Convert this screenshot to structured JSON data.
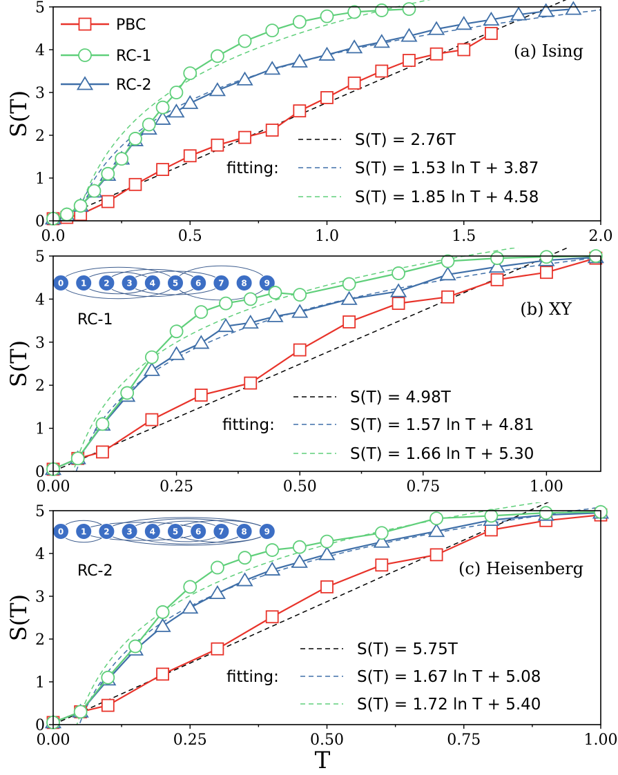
{
  "colors": {
    "PBC": "#e8332a",
    "RC-1": "#5fcf7a",
    "RC-2": "#3f6fa8",
    "linear_fit": "#000000",
    "node": "#3c6ec4",
    "arc": "#3a5a8c"
  },
  "legend": [
    "PBC",
    "RC-1",
    "RC-2"
  ],
  "fitting_word": "fitting:",
  "x_axis_label": "T",
  "y_axis_label": "S(T)",
  "chart_data": [
    {
      "type": "line",
      "panel_label": "(a) Ising",
      "xlim": [
        0,
        2.0
      ],
      "ylim": [
        0,
        5
      ],
      "xticks": [
        0.0,
        0.5,
        1.0,
        1.5,
        2.0
      ],
      "xtick_labels": [
        "0.0",
        "0.5",
        "1.0",
        "1.5",
        "2.0"
      ],
      "yticks": [
        0,
        1,
        2,
        3,
        4,
        5
      ],
      "ytick_labels": [
        "0",
        "1",
        "2",
        "3",
        "4",
        "5"
      ],
      "series": [
        {
          "name": "PBC",
          "marker": "square",
          "x": [
            0.0,
            0.05,
            0.1,
            0.2,
            0.3,
            0.4,
            0.5,
            0.6,
            0.7,
            0.8,
            0.9,
            1.0,
            1.1,
            1.2,
            1.3,
            1.4,
            1.5,
            1.6
          ],
          "y": [
            0.05,
            0.08,
            0.15,
            0.45,
            0.85,
            1.2,
            1.52,
            1.77,
            1.95,
            2.12,
            2.57,
            2.88,
            3.22,
            3.5,
            3.75,
            3.9,
            4.0,
            4.38
          ]
        },
        {
          "name": "RC-1",
          "marker": "circle",
          "x": [
            0.0,
            0.05,
            0.1,
            0.15,
            0.2,
            0.25,
            0.3,
            0.35,
            0.4,
            0.45,
            0.5,
            0.6,
            0.7,
            0.8,
            0.9,
            1.0,
            1.1,
            1.2,
            1.3
          ],
          "y": [
            0.05,
            0.15,
            0.35,
            0.7,
            1.1,
            1.45,
            1.92,
            2.25,
            2.65,
            3.0,
            3.45,
            3.85,
            4.2,
            4.45,
            4.65,
            4.78,
            4.88,
            4.92,
            4.95
          ]
        },
        {
          "name": "RC-2",
          "marker": "triangle",
          "x": [
            0.0,
            0.05,
            0.1,
            0.15,
            0.2,
            0.25,
            0.3,
            0.35,
            0.4,
            0.45,
            0.5,
            0.6,
            0.7,
            0.8,
            0.9,
            1.0,
            1.1,
            1.2,
            1.3,
            1.4,
            1.5,
            1.6,
            1.7,
            1.8,
            1.9
          ],
          "y": [
            0.05,
            0.13,
            0.35,
            0.68,
            1.07,
            1.45,
            1.88,
            2.15,
            2.38,
            2.55,
            2.75,
            3.05,
            3.3,
            3.55,
            3.72,
            3.88,
            4.05,
            4.18,
            4.32,
            4.48,
            4.6,
            4.7,
            4.82,
            4.9,
            4.95
          ]
        }
      ],
      "fits": [
        {
          "label": "S(T) = 2.76T",
          "kind": "linear",
          "a": 2.76,
          "color_key": "linear_fit"
        },
        {
          "label": "S(T) = 1.53 ln T + 3.87",
          "kind": "log",
          "a": 1.53,
          "b": 3.87,
          "color_key": "RC-2"
        },
        {
          "label": "S(T) = 1.85 ln T + 4.58",
          "kind": "log",
          "a": 1.85,
          "b": 4.58,
          "color_key": "RC-1"
        }
      ],
      "legend_position": "top-left"
    },
    {
      "type": "line",
      "panel_label": "(b) XY",
      "inset_label": "RC-1",
      "xlim": [
        0,
        1.11
      ],
      "ylim": [
        0,
        5
      ],
      "xticks": [
        0.0,
        0.25,
        0.5,
        0.75,
        1.0
      ],
      "xtick_labels": [
        "0.00",
        "0.25",
        "0.50",
        "0.75",
        "1.00"
      ],
      "yticks": [
        0,
        1,
        2,
        3,
        4,
        5
      ],
      "ytick_labels": [
        "0",
        "1",
        "2",
        "3",
        "4",
        "5"
      ],
      "series": [
        {
          "name": "PBC",
          "marker": "square",
          "x": [
            0.0,
            0.05,
            0.1,
            0.2,
            0.3,
            0.4,
            0.5,
            0.6,
            0.7,
            0.8,
            0.9,
            1.0,
            1.1
          ],
          "y": [
            0.05,
            0.3,
            0.45,
            1.2,
            1.77,
            2.05,
            2.82,
            3.47,
            3.9,
            4.05,
            4.45,
            4.62,
            4.95
          ]
        },
        {
          "name": "RC-1",
          "marker": "circle",
          "x": [
            0.0,
            0.05,
            0.1,
            0.15,
            0.2,
            0.25,
            0.3,
            0.35,
            0.4,
            0.45,
            0.5,
            0.6,
            0.7,
            0.8,
            0.9,
            1.0,
            1.1
          ],
          "y": [
            0.05,
            0.3,
            1.1,
            1.82,
            2.65,
            3.25,
            3.7,
            3.9,
            4.0,
            4.15,
            4.1,
            4.35,
            4.6,
            4.88,
            4.95,
            4.98,
            5.0
          ]
        },
        {
          "name": "RC-2",
          "marker": "triangle",
          "x": [
            0.0,
            0.05,
            0.1,
            0.15,
            0.2,
            0.25,
            0.3,
            0.35,
            0.4,
            0.45,
            0.5,
            0.6,
            0.7,
            0.8,
            0.9,
            1.0,
            1.1
          ],
          "y": [
            0.05,
            0.3,
            1.08,
            1.75,
            2.35,
            2.72,
            2.98,
            3.37,
            3.45,
            3.6,
            3.7,
            4.0,
            4.18,
            4.57,
            4.75,
            4.9,
            4.97
          ]
        }
      ],
      "fits": [
        {
          "label": "S(T) = 4.98T",
          "kind": "linear",
          "a": 4.98,
          "color_key": "linear_fit"
        },
        {
          "label": "S(T) = 1.57 ln T + 4.81",
          "kind": "log",
          "a": 1.57,
          "b": 4.81,
          "color_key": "RC-2"
        },
        {
          "label": "S(T) = 1.66 ln T + 5.30",
          "kind": "log",
          "a": 1.66,
          "b": 5.3,
          "color_key": "RC-1"
        }
      ],
      "nodes": [
        "0",
        "1",
        "2",
        "3",
        "4",
        "5",
        "6",
        "7",
        "8",
        "9"
      ]
    },
    {
      "type": "line",
      "panel_label": "(c) Heisenberg",
      "inset_label": "RC-2",
      "xlim": [
        0,
        1.0
      ],
      "ylim": [
        0,
        5
      ],
      "xticks": [
        0.0,
        0.25,
        0.5,
        0.75,
        1.0
      ],
      "xtick_labels": [
        "0.00",
        "0.25",
        "0.50",
        "0.75",
        "1.00"
      ],
      "yticks": [
        0,
        1,
        2,
        3,
        4,
        5
      ],
      "ytick_labels": [
        "0",
        "1",
        "2",
        "3",
        "4",
        "5"
      ],
      "series": [
        {
          "name": "PBC",
          "marker": "square",
          "x": [
            0.0,
            0.05,
            0.1,
            0.2,
            0.3,
            0.4,
            0.5,
            0.6,
            0.7,
            0.8,
            0.9,
            1.0
          ],
          "y": [
            0.05,
            0.3,
            0.45,
            1.18,
            1.77,
            2.52,
            3.22,
            3.73,
            3.97,
            4.55,
            4.77,
            4.9
          ]
        },
        {
          "name": "RC-1",
          "marker": "circle",
          "x": [
            0.0,
            0.05,
            0.1,
            0.15,
            0.2,
            0.25,
            0.3,
            0.35,
            0.4,
            0.45,
            0.5,
            0.6,
            0.7,
            0.8,
            0.9,
            1.0
          ],
          "y": [
            0.05,
            0.3,
            1.1,
            1.83,
            2.63,
            3.22,
            3.67,
            3.9,
            4.08,
            4.15,
            4.28,
            4.48,
            4.82,
            4.88,
            4.95,
            4.97
          ]
        },
        {
          "name": "RC-2",
          "marker": "triangle",
          "x": [
            0.0,
            0.05,
            0.1,
            0.15,
            0.2,
            0.25,
            0.3,
            0.35,
            0.4,
            0.45,
            0.5,
            0.6,
            0.7,
            0.8,
            0.9,
            1.0
          ],
          "y": [
            0.05,
            0.3,
            1.05,
            1.75,
            2.3,
            2.73,
            3.07,
            3.37,
            3.62,
            3.8,
            3.98,
            4.27,
            4.52,
            4.78,
            4.9,
            4.95
          ]
        }
      ],
      "fits": [
        {
          "label": "S(T) = 5.75T",
          "kind": "linear",
          "a": 5.75,
          "color_key": "linear_fit"
        },
        {
          "label": "S(T) = 1.67 ln T + 5.08",
          "kind": "log",
          "a": 1.67,
          "b": 5.08,
          "color_key": "RC-2"
        },
        {
          "label": "S(T) = 1.72 ln T + 5.40",
          "kind": "log",
          "a": 1.72,
          "b": 5.4,
          "color_key": "RC-1"
        }
      ],
      "nodes": [
        "0",
        "1",
        "2",
        "3",
        "4",
        "5",
        "6",
        "7",
        "8",
        "9"
      ]
    }
  ]
}
